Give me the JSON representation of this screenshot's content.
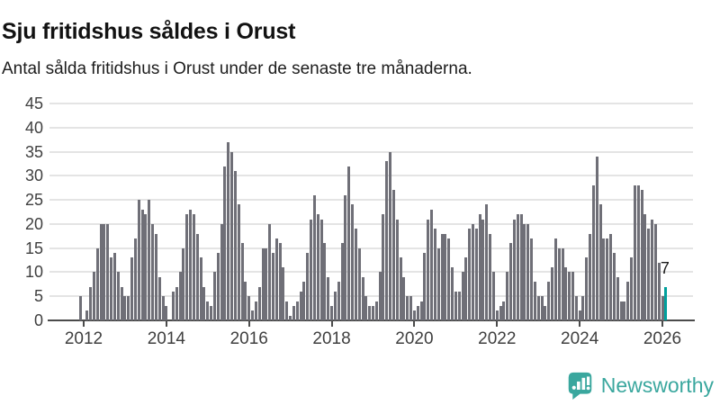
{
  "header": {
    "title": "Sju fritidshus såldes i Orust",
    "subtitle": "Antal sålda fritidshus i Orust under de senaste tre månaderna."
  },
  "chart_data": {
    "type": "bar",
    "title": "Sju fritidshus såldes i Orust",
    "subtitle": "Antal sålda fritidshus i Orust under de senaste tre månaderna.",
    "frequency": "monthly",
    "start_month": "2011-12",
    "end_month": "2026-02",
    "values": [
      5,
      0,
      2,
      7,
      10,
      15,
      20,
      20,
      20,
      13,
      14,
      10,
      7,
      5,
      5,
      13,
      17,
      25,
      23,
      22,
      25,
      20,
      18,
      9,
      5,
      3,
      0,
      6,
      7,
      10,
      15,
      22,
      23,
      22,
      18,
      13,
      7,
      4,
      3,
      10,
      14,
      20,
      32,
      37,
      35,
      31,
      24,
      16,
      8,
      5,
      2,
      4,
      7,
      15,
      15,
      20,
      14,
      17,
      16,
      11,
      4,
      1,
      3,
      4,
      6,
      8,
      14,
      21,
      26,
      22,
      21,
      16,
      9,
      3,
      6,
      8,
      16,
      26,
      32,
      24,
      19,
      15,
      9,
      5,
      3,
      3,
      4,
      10,
      22,
      33,
      35,
      27,
      21,
      13,
      9,
      5,
      5,
      2,
      3,
      4,
      14,
      21,
      23,
      19,
      15,
      18,
      18,
      17,
      11,
      6,
      6,
      10,
      13,
      19,
      20,
      19,
      22,
      21,
      24,
      18,
      10,
      2,
      3,
      4,
      10,
      16,
      21,
      22,
      22,
      20,
      20,
      17,
      8,
      5,
      5,
      3,
      8,
      11,
      17,
      15,
      15,
      11,
      10,
      10,
      5,
      2,
      5,
      13,
      18,
      28,
      34,
      24,
      17,
      17,
      18,
      14,
      9,
      4,
      4,
      8,
      13,
      28,
      28,
      27,
      22,
      19,
      21,
      20,
      12,
      5,
      7
    ],
    "y_ticks": [
      0,
      5,
      10,
      15,
      20,
      25,
      30,
      35,
      40,
      45
    ],
    "ylim": [
      0,
      45
    ],
    "x_tick_labels": [
      "2012",
      "2014",
      "2016",
      "2018",
      "2020",
      "2022",
      "2024",
      "2026"
    ],
    "grid": "horizontal",
    "legend": "none",
    "highlight_last_bar": true,
    "annotation": {
      "text": "7",
      "target": "last_bar"
    },
    "colors": {
      "bar": "#6f6f77",
      "highlight": "#00a09c",
      "gridline": "#e4e4e4",
      "axis": "#4b4b4b",
      "tick_label": "#3f3f3f"
    }
  },
  "footer": {
    "logo_text": "Newsworthy",
    "logo_color": "#3aa79e"
  }
}
